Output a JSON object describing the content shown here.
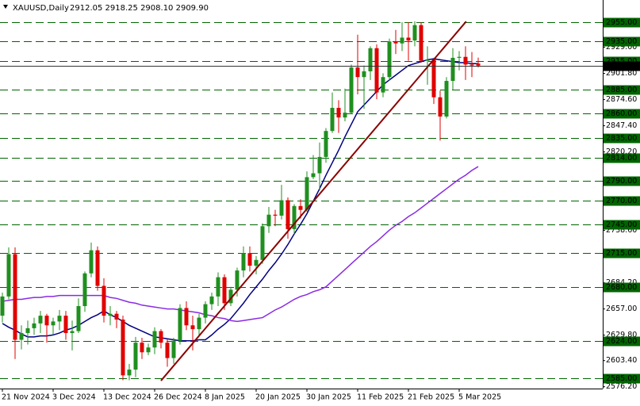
{
  "chart_data": {
    "type": "candlestick",
    "header": {
      "symbol": "XAUUSD,Daily",
      "ohlc_label": "2912.05 2918.25 2908.10 2909.90"
    },
    "categories": [
      "21 Nov 2024",
      null,
      null,
      null,
      null,
      null,
      null,
      null,
      "3 Dec 2024",
      null,
      null,
      null,
      null,
      null,
      null,
      null,
      "13 Dec 2024",
      null,
      null,
      null,
      null,
      null,
      null,
      null,
      "26 Dec 2024",
      null,
      null,
      null,
      null,
      null,
      null,
      null,
      "8 Jan 2025",
      null,
      null,
      null,
      null,
      null,
      null,
      null,
      "20 Jan 2025",
      null,
      null,
      null,
      null,
      null,
      null,
      null,
      "30 Jan 2025",
      null,
      null,
      null,
      null,
      null,
      null,
      null,
      "11 Feb 2025",
      null,
      null,
      null,
      null,
      null,
      null,
      null,
      "21 Feb 2025",
      null,
      null,
      null,
      null,
      null,
      null,
      null,
      "5 Mar 2025",
      null,
      null,
      null
    ],
    "open": [
      2650,
      2670,
      2714,
      2625,
      2632,
      2637,
      2642,
      2650,
      2640,
      2644,
      2650,
      2632,
      2634,
      2660,
      2694,
      2718,
      2681,
      2650,
      2652,
      2646,
      2588,
      2594,
      2622,
      2612,
      2617,
      2634,
      2622,
      2606,
      2624,
      2658,
      2640,
      2636,
      2648,
      2662,
      2670,
      2690,
      2663,
      2677,
      2697,
      2715,
      2702,
      2708,
      2743,
      2755,
      2754,
      2770,
      2740,
      2764,
      2760,
      2794,
      2798,
      2815,
      2842,
      2866,
      2856,
      2861,
      2908,
      2898,
      2904,
      2928,
      2882,
      2898,
      2935,
      2933,
      2939,
      2936,
      2952,
      2915,
      2916,
      2877,
      2857,
      2894,
      2918,
      2919,
      2911,
      2912.05
    ],
    "high": [
      2674,
      2721,
      2721,
      2640,
      2645,
      2648,
      2655,
      2652,
      2648,
      2656,
      2655,
      2645,
      2668,
      2696,
      2726,
      2722,
      2689,
      2660,
      2655,
      2650,
      2600,
      2628,
      2627,
      2621,
      2638,
      2636,
      2626,
      2627,
      2662,
      2665,
      2650,
      2652,
      2665,
      2674,
      2695,
      2693,
      2680,
      2700,
      2722,
      2722,
      2712,
      2746,
      2763,
      2760,
      2786,
      2773,
      2766,
      2771,
      2800,
      2817,
      2830,
      2845,
      2882,
      2874,
      2886,
      2911,
      2942,
      2910,
      2930,
      2932,
      2902,
      2938,
      2947,
      2955,
      2955,
      2956,
      2955,
      2930,
      2918,
      2884,
      2898,
      2928,
      2925,
      2930,
      2924,
      2918.25
    ],
    "low": [
      2643,
      2667,
      2605,
      2615,
      2620,
      2630,
      2632,
      2622,
      2630,
      2635,
      2625,
      2614,
      2632,
      2654,
      2690,
      2676,
      2643,
      2640,
      2637,
      2583,
      2583,
      2586,
      2605,
      2609,
      2610,
      2616,
      2597,
      2600,
      2620,
      2635,
      2614,
      2630,
      2642,
      2656,
      2660,
      2656,
      2660,
      2670,
      2690,
      2696,
      2693,
      2704,
      2736,
      2743,
      2750,
      2730,
      2735,
      2751,
      2758,
      2792,
      2780,
      2809,
      2840,
      2840,
      2852,
      2860,
      2880,
      2865,
      2895,
      2875,
      2877,
      2894,
      2922,
      2925,
      2915,
      2930,
      2913,
      2890,
      2870,
      2832,
      2855,
      2885,
      2905,
      2895,
      2898,
      2908.1
    ],
    "close": [
      2670,
      2714,
      2625,
      2632,
      2637,
      2642,
      2650,
      2640,
      2644,
      2650,
      2632,
      2634,
      2660,
      2694,
      2718,
      2681,
      2650,
      2652,
      2646,
      2588,
      2594,
      2622,
      2612,
      2617,
      2634,
      2622,
      2606,
      2624,
      2658,
      2640,
      2636,
      2648,
      2662,
      2670,
      2690,
      2663,
      2677,
      2697,
      2715,
      2702,
      2708,
      2743,
      2755,
      2754,
      2770,
      2740,
      2764,
      2760,
      2794,
      2798,
      2815,
      2842,
      2866,
      2856,
      2861,
      2908,
      2898,
      2904,
      2928,
      2882,
      2898,
      2935,
      2933,
      2939,
      2936,
      2952,
      2915,
      2916,
      2877,
      2857,
      2894,
      2918,
      2919,
      2911,
      2910,
      2909.9
    ],
    "up_color": "#1f8f1f",
    "down_color": "#e00000",
    "series": [
      {
        "color": "#000080",
        "values": [
          2642,
          2638,
          2635,
          2631,
          2628,
          2628,
          2629,
          2629,
          2630,
          2632,
          2635,
          2637,
          2640,
          2644,
          2648,
          2651,
          2655,
          2651,
          2648,
          2644,
          2640,
          2637,
          2634,
          2631,
          2628,
          2627,
          2626,
          2625,
          2624,
          2624,
          2624,
          2625,
          2625,
          2630,
          2636,
          2641,
          2647,
          2655,
          2663,
          2672,
          2680,
          2688,
          2697,
          2705,
          2714,
          2724,
          2735,
          2745,
          2756,
          2769,
          2782,
          2796,
          2809,
          2822,
          2836,
          2849,
          2862,
          2869,
          2876,
          2883,
          2890,
          2895,
          2900,
          2905,
          2910,
          2912,
          2914,
          2916,
          2917,
          2916,
          2915,
          2914,
          2913,
          2913,
          2912,
          2912
        ]
      },
      {
        "color": "#8a2be2",
        "values": [
          2665,
          2666,
          2667,
          2667,
          2668,
          2669,
          2669,
          2670,
          2670,
          2671,
          2671,
          2671,
          2671,
          2671,
          2671,
          2671,
          2671,
          2669,
          2668,
          2666,
          2664,
          2663,
          2661,
          2660,
          2659,
          2658,
          2657,
          2657,
          2656,
          2655,
          2654,
          2653,
          2651,
          2650,
          2648,
          2647,
          2645,
          2644,
          2645,
          2646,
          2647,
          2648,
          2652,
          2656,
          2659,
          2663,
          2667,
          2670,
          2672,
          2675,
          2677,
          2680,
          2686,
          2692,
          2698,
          2704,
          2710,
          2716,
          2722,
          2727,
          2733,
          2739,
          2744,
          2748,
          2753,
          2757,
          2762,
          2767,
          2772,
          2777,
          2782,
          2787,
          2792,
          2796,
          2801,
          2805
        ]
      }
    ],
    "trendline": {
      "x": [
        25,
        73.1
      ],
      "y": [
        2582.5,
        2955.8
      ],
      "color": "#8b0000"
    },
    "levels": [
      {
        "value": 2955,
        "label": "2955.00"
      },
      {
        "value": 2935,
        "label": "2935.00"
      },
      {
        "value": 2915,
        "label": "2915.00"
      },
      {
        "value": 2885,
        "label": "2885.00"
      },
      {
        "value": 2860,
        "label": "2860.00"
      },
      {
        "value": 2835,
        "label": "2835.00"
      },
      {
        "value": 2814,
        "label": "2814.00"
      },
      {
        "value": 2790,
        "label": "2790.00"
      },
      {
        "value": 2770,
        "label": "2770.00"
      },
      {
        "value": 2745,
        "label": "2745.00"
      },
      {
        "value": 2715,
        "label": "2715.00"
      },
      {
        "value": 2680,
        "label": "2680.00"
      },
      {
        "value": 2624,
        "label": "2624.00"
      },
      {
        "value": 2585,
        "label": "2585.00"
      }
    ],
    "level_color": "#006400",
    "last_price": {
      "value": 2909.9,
      "label": "2909.90"
    },
    "ylim": [
      2574.3,
      2978.1
    ],
    "yticks": [
      {
        "value": 2929,
        "label": "2929.00"
      },
      {
        "value": 2901.8,
        "label": "2901.80"
      },
      {
        "value": 2874.6,
        "label": "2874.60"
      },
      {
        "value": 2847.4,
        "label": "2847.40"
      },
      {
        "value": 2820.2,
        "label": "2820.20"
      },
      {
        "value": 2738.6,
        "label": "2738.60"
      },
      {
        "value": 2684.2,
        "label": "2684.20"
      },
      {
        "value": 2657,
        "label": "2657.00"
      },
      {
        "value": 2629.8,
        "label": "2629.80"
      },
      {
        "value": 2603.4,
        "label": "2603.40"
      },
      {
        "value": 2576.2,
        "label": "2576.20"
      }
    ]
  }
}
